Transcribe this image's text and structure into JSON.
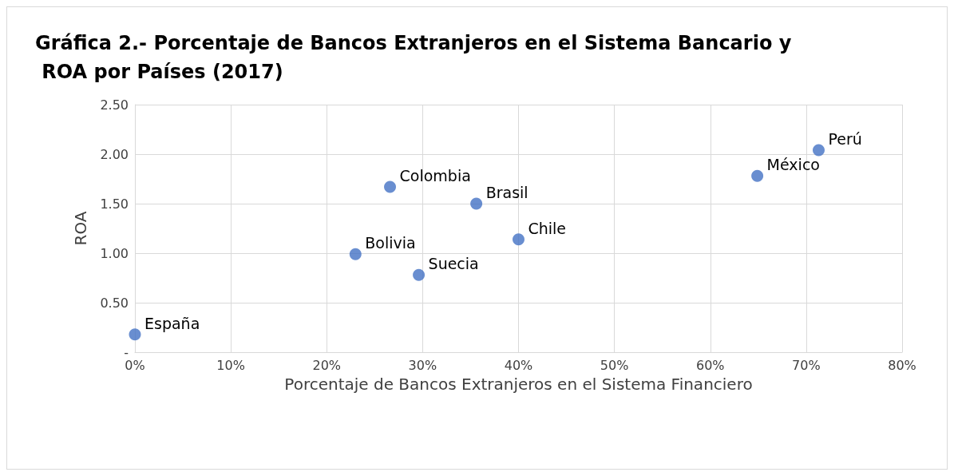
{
  "chart_data": {
    "type": "scatter",
    "title": "Gráfica 2.- Porcentaje de Bancos Extranjeros en el Sistema Bancario y ROA por Países (2017)",
    "xlabel": "Porcentaje de Bancos Extranjeros en el Sistema Financiero",
    "ylabel": "ROA",
    "x": [
      0,
      23.0,
      26.6,
      29.6,
      35.6,
      40.0,
      64.9,
      71.3
    ],
    "series": [
      {
        "color": "#4472c4",
        "values": [
          0.18,
          0.99,
          1.67,
          0.78,
          1.5,
          1.14,
          1.78,
          2.04
        ]
      }
    ],
    "annotations": [
      {
        "text": "España",
        "x": 0,
        "y": 0.18
      },
      {
        "text": "Bolivia",
        "x": 23.0,
        "y": 0.99
      },
      {
        "text": "Colombia",
        "x": 26.6,
        "y": 1.67
      },
      {
        "text": "Suecia",
        "x": 29.6,
        "y": 0.78
      },
      {
        "text": "Brasil",
        "x": 35.6,
        "y": 1.5
      },
      {
        "text": "Chile",
        "x": 40.0,
        "y": 1.14
      },
      {
        "text": "México",
        "x": 64.9,
        "y": 1.78
      },
      {
        "text": "Perú",
        "x": 71.3,
        "y": 2.04
      }
    ],
    "xlim": [
      0,
      80
    ],
    "xticks": [
      {
        "value": 0,
        "label": "0%"
      },
      {
        "value": 10,
        "label": "10%"
      },
      {
        "value": 20,
        "label": "20%"
      },
      {
        "value": 30,
        "label": "30%"
      },
      {
        "value": 40,
        "label": "40%"
      },
      {
        "value": 50,
        "label": "50%"
      },
      {
        "value": 60,
        "label": "60%"
      },
      {
        "value": 70,
        "label": "70%"
      },
      {
        "value": 80,
        "label": "80%"
      }
    ],
    "ylim": [
      0,
      2.5
    ],
    "yticks": [
      {
        "value": 0,
        "label": "-"
      },
      {
        "value": 0.5,
        "label": "0.50"
      },
      {
        "value": 1,
        "label": "1.00"
      },
      {
        "value": 1.5,
        "label": "1.50"
      },
      {
        "value": 2,
        "label": "2.00"
      },
      {
        "value": 2.5,
        "label": "2.50"
      }
    ],
    "grid": true,
    "marker": "circle"
  }
}
